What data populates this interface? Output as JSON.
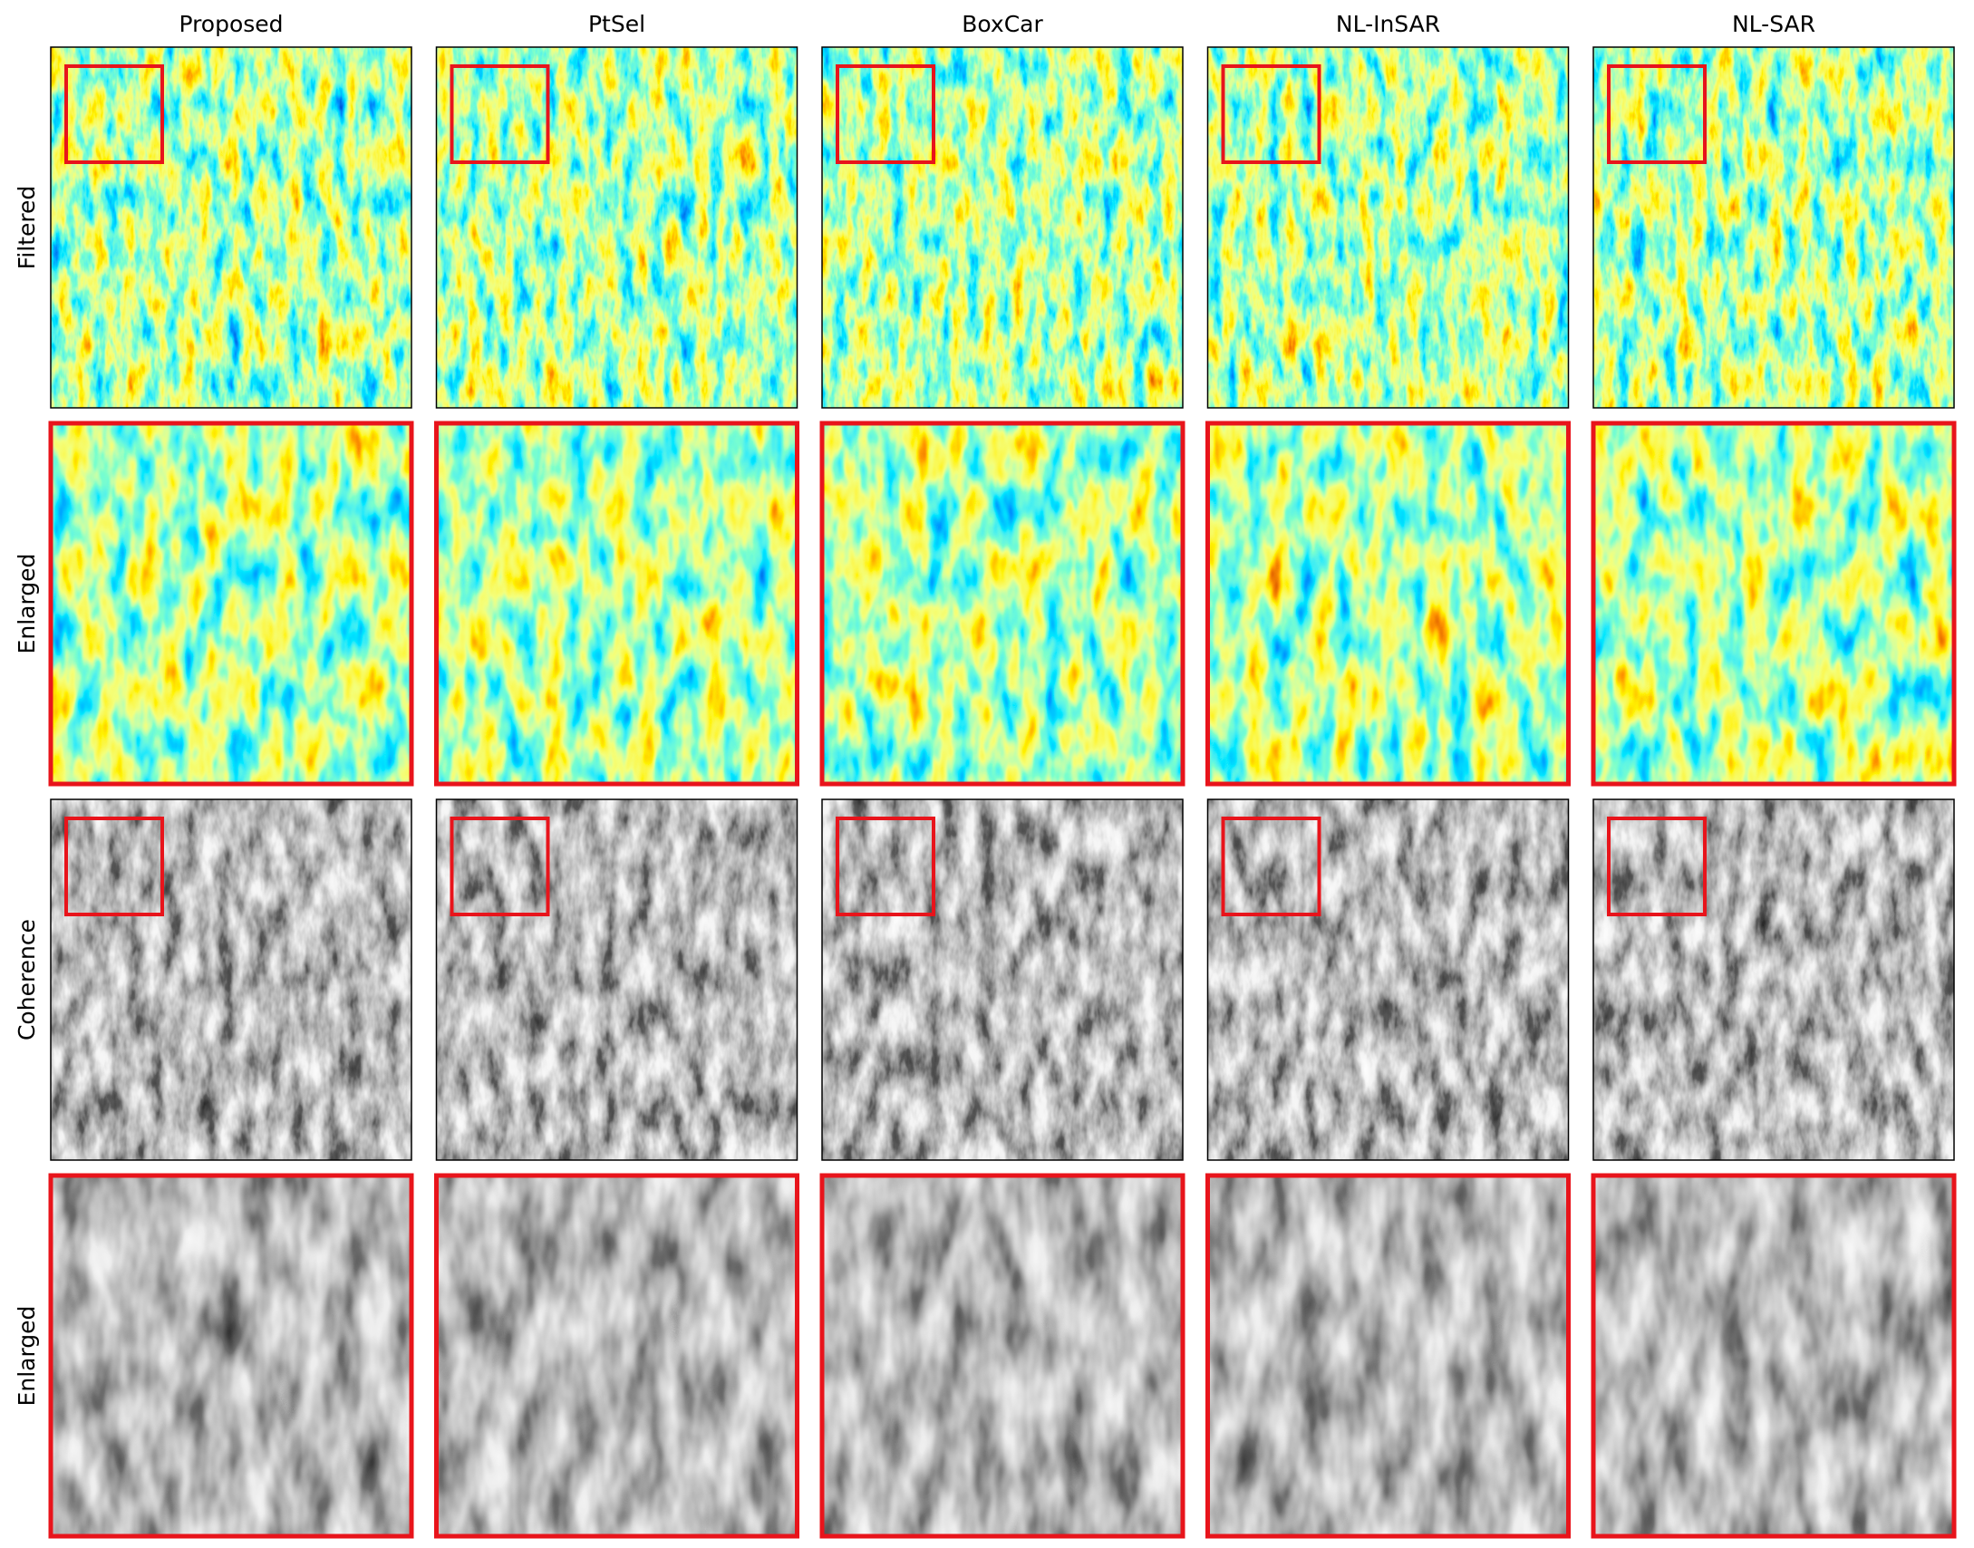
{
  "columns": [
    "Proposed",
    "PtSel",
    "BoxCar",
    "NL-InSAR",
    "NL-SAR"
  ],
  "rows": [
    "Filtered",
    "Enlarged",
    "Coherence",
    "Enlarged"
  ]
}
